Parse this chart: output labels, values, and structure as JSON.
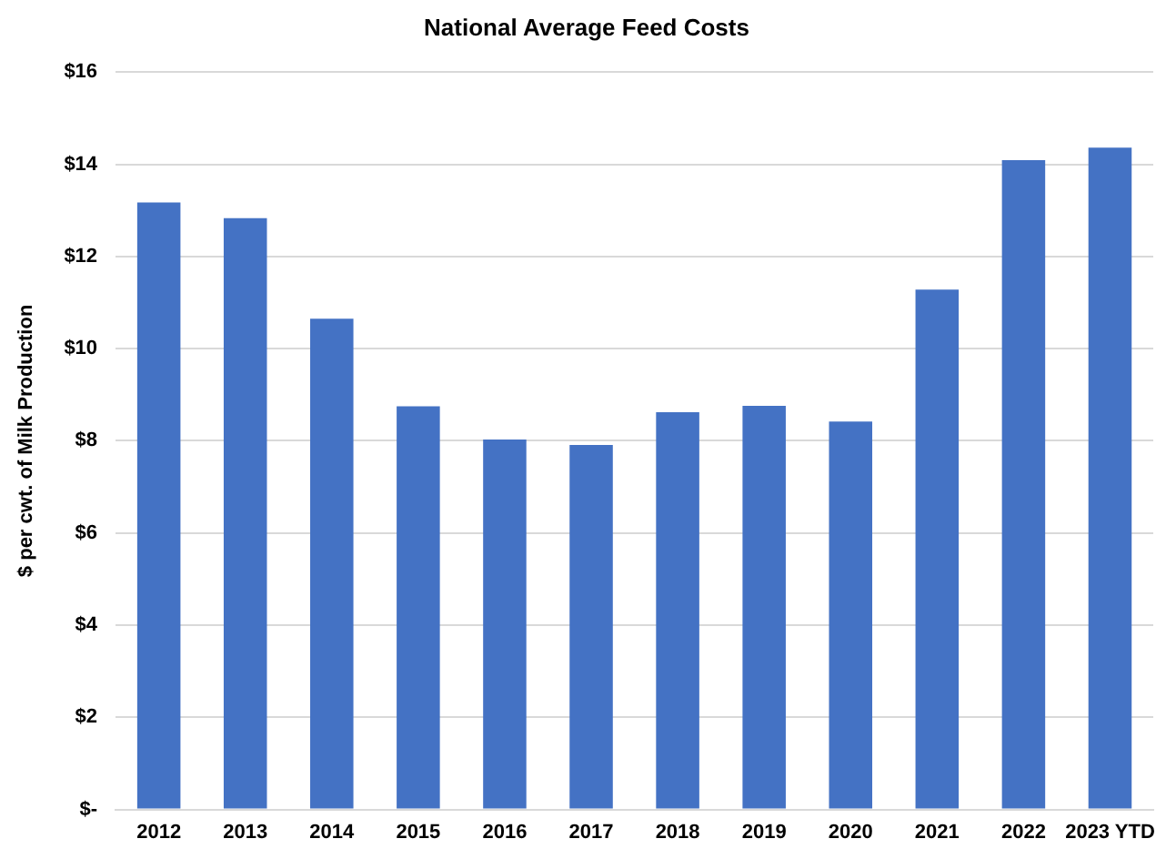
{
  "chart_data": {
    "type": "bar",
    "title": "National Average Feed Costs",
    "ylabel": "$ per cwt. of Milk Production",
    "categories": [
      "2012",
      "2013",
      "2014",
      "2015",
      "2016",
      "2017",
      "2018",
      "2019",
      "2020",
      "2021",
      "2022",
      "2023 YTD"
    ],
    "values": [
      13.17,
      12.83,
      10.65,
      8.75,
      8.03,
      7.91,
      8.62,
      8.76,
      8.42,
      11.28,
      14.09,
      14.36
    ],
    "color": "#4472c4",
    "ylim": [
      0,
      16
    ],
    "yticks": [
      {
        "value": 0,
        "label": "$-"
      },
      {
        "value": 2,
        "label": "$2"
      },
      {
        "value": 4,
        "label": "$4"
      },
      {
        "value": 6,
        "label": "$6"
      },
      {
        "value": 8,
        "label": "$8"
      },
      {
        "value": 10,
        "label": "$10"
      },
      {
        "value": 12,
        "label": "$12"
      },
      {
        "value": 14,
        "label": "$14"
      },
      {
        "value": 16,
        "label": "$16"
      }
    ],
    "grid": "y",
    "legend": false
  }
}
